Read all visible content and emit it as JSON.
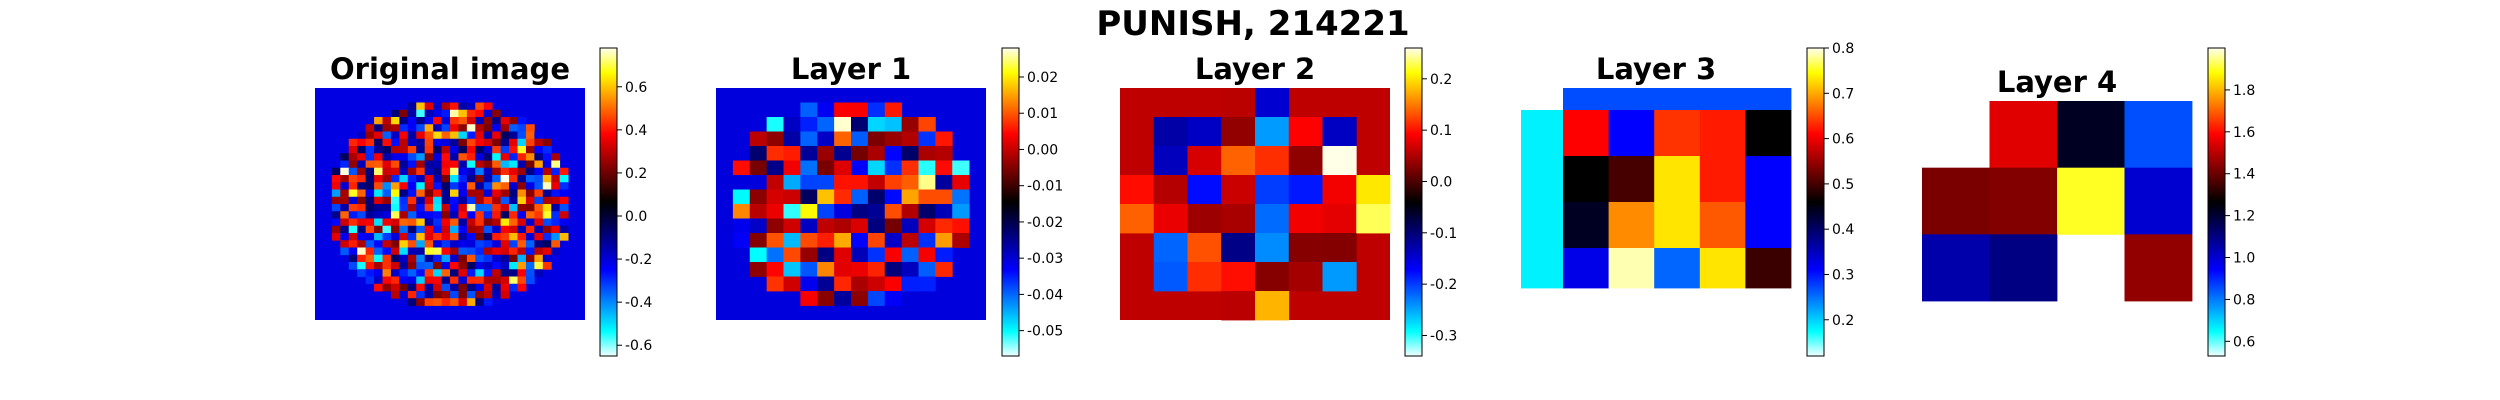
{
  "figure_title": "PUNISH, 214221",
  "chart_data": [
    {
      "type": "heatmap",
      "title": "Original image",
      "grid_rows": 32,
      "grid_cols": 32,
      "mask": "circle",
      "colormap": "flag-like diverging (cyan-blue-black-red-yellow-white)",
      "colorbar": {
        "vmin": -0.65,
        "vmax": 0.78,
        "ticks": [
          "-0.6",
          "-0.4",
          "-0.2",
          "0.0",
          "0.2",
          "0.4",
          "0.6"
        ]
      }
    },
    {
      "type": "heatmap",
      "title": "Layer 1",
      "grid_rows": 16,
      "grid_cols": 16,
      "mask": "circle",
      "colormap": "flag-like diverging (cyan-blue-black-red-yellow-white)",
      "colorbar": {
        "vmin": -0.057,
        "vmax": 0.028,
        "ticks": [
          "-0.05",
          "-0.04",
          "-0.03",
          "-0.02",
          "-0.01",
          "0.00",
          "0.01",
          "0.02"
        ]
      }
    },
    {
      "type": "heatmap",
      "title": "Layer 2",
      "grid_rows": 8,
      "grid_cols": 8,
      "mask": "circle",
      "colormap": "flag-like diverging (cyan-blue-black-red-yellow-white)",
      "colorbar": {
        "vmin": -0.34,
        "vmax": 0.26,
        "ticks": [
          "-0.3",
          "-0.2",
          "-0.1",
          "0.0",
          "0.1",
          "0.2"
        ]
      }
    },
    {
      "type": "heatmap",
      "title": "Layer 3",
      "grid_rows": 5,
      "grid_cols": 6,
      "colormap": "flag-like diverging (cyan-blue-black-red-yellow-white)",
      "colorbar": {
        "vmin": 0.12,
        "vmax": 0.8,
        "ticks": [
          "0.2",
          "0.3",
          "0.4",
          "0.5",
          "0.6",
          "0.7",
          "0.8"
        ]
      }
    },
    {
      "type": "heatmap",
      "title": "Layer 4",
      "grid_rows": 3,
      "grid_cols": 4,
      "colormap": "flag-like diverging (cyan-blue-black-red-yellow-white)",
      "colorbar": {
        "vmin": 0.53,
        "vmax": 2.0,
        "ticks": [
          "0.6",
          "0.8",
          "1.0",
          "1.2",
          "1.4",
          "1.6",
          "1.8"
        ]
      },
      "cell_values": [
        [
          null,
          1.55,
          1.22,
          0.85
        ],
        [
          1.42,
          1.43,
          1.9,
          1.0
        ],
        [
          1.05,
          1.1,
          null,
          1.45
        ]
      ]
    }
  ]
}
